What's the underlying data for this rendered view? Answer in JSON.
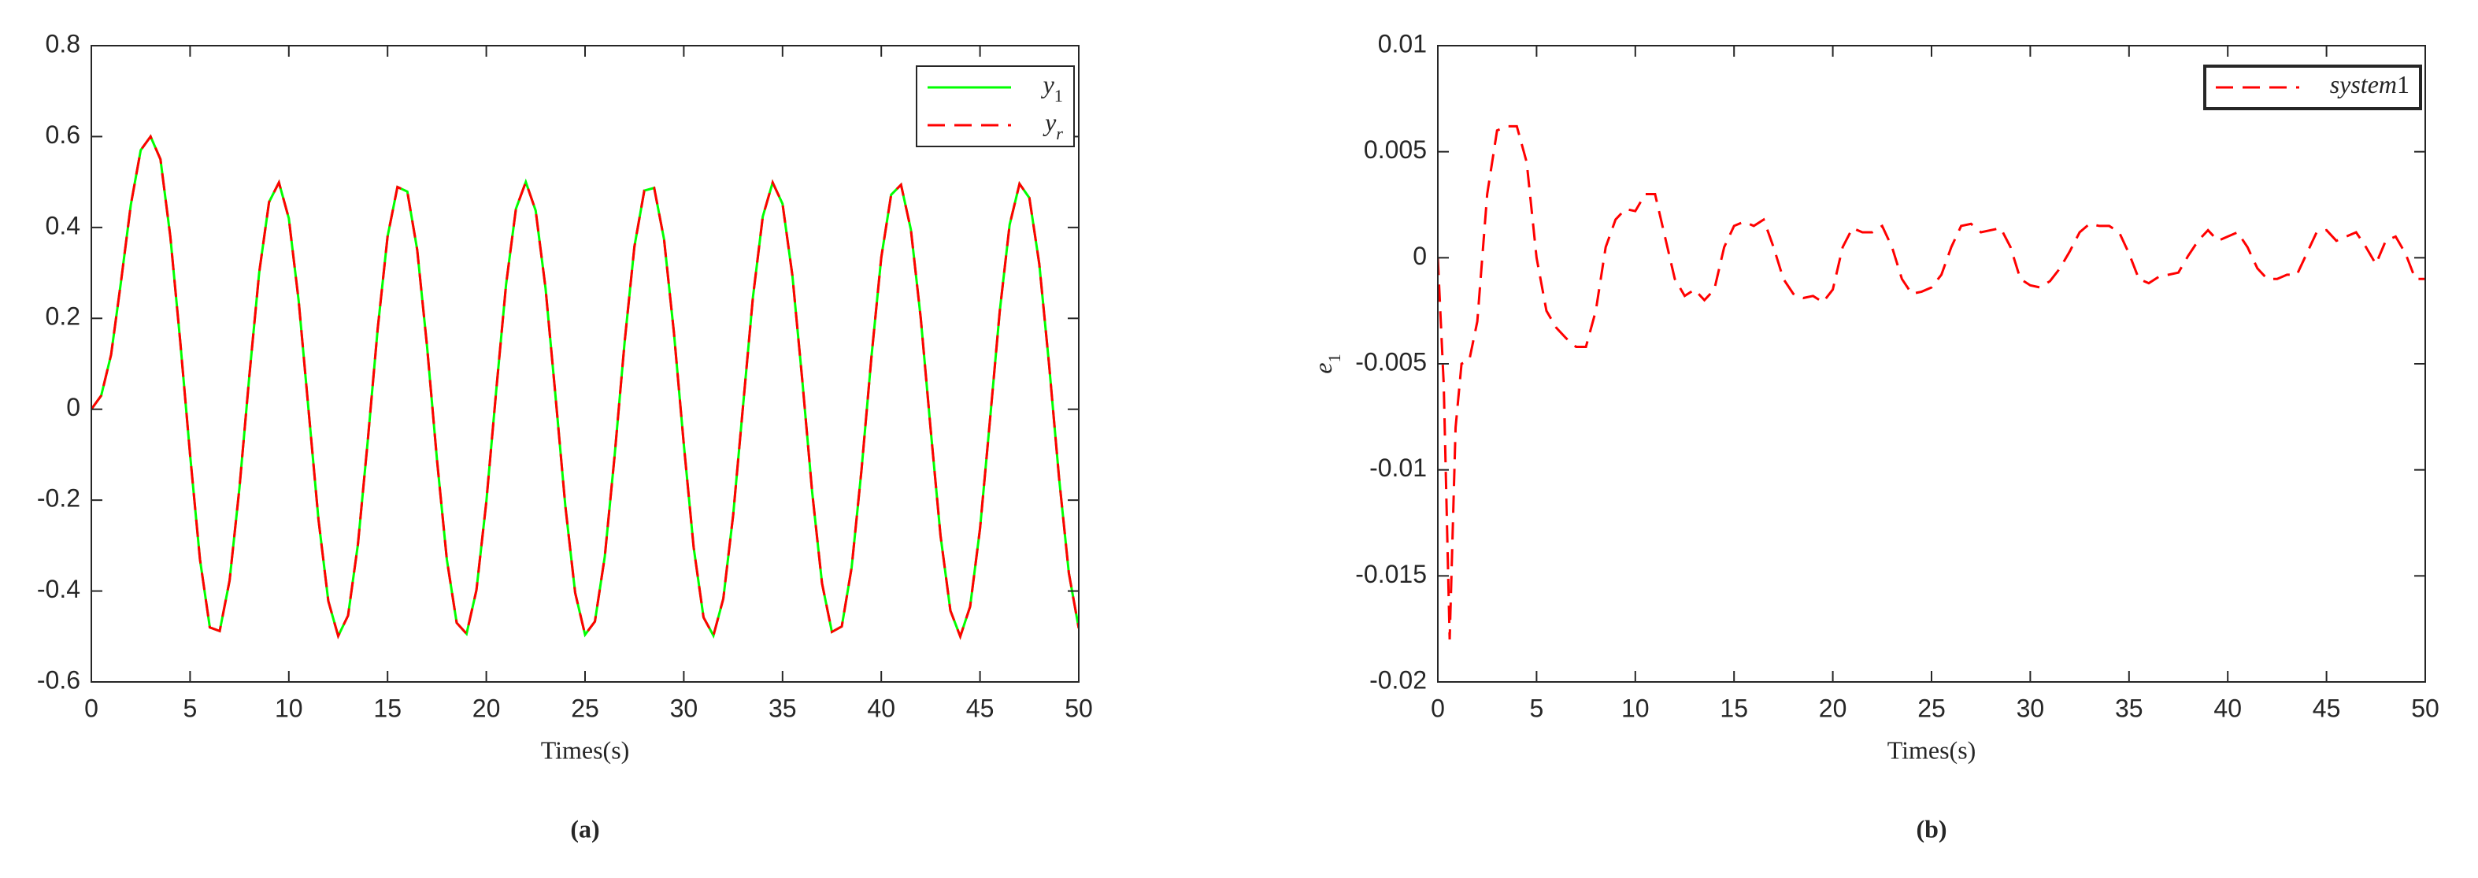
{
  "chart_data": [
    {
      "type": "line",
      "caption": "(a)",
      "xlabel": "Times(s)",
      "x": [
        0,
        0.5,
        1,
        1.5,
        2,
        2.5,
        3,
        3.5,
        4,
        4.5,
        5,
        5.5,
        6,
        6.5,
        7,
        7.5,
        8,
        8.5,
        9,
        9.5,
        10,
        10.5,
        11,
        11.5,
        12,
        12.5,
        13,
        13.5,
        14,
        14.5,
        15,
        15.5,
        16,
        16.5,
        17,
        17.5,
        18,
        18.5,
        19,
        19.5,
        20,
        20.5,
        21,
        21.5,
        22,
        22.5,
        23,
        23.5,
        24,
        24.5,
        25,
        25.5,
        26,
        26.5,
        27,
        27.5,
        28,
        28.5,
        29,
        29.5,
        30,
        30.5,
        31,
        31.5,
        32,
        32.5,
        33,
        33.5,
        34,
        34.5,
        35,
        35.5,
        36,
        36.5,
        37,
        37.5,
        38,
        38.5,
        39,
        39.5,
        40,
        40.5,
        41,
        41.5,
        42,
        42.5,
        43,
        43.5,
        44,
        44.5,
        45,
        45.5,
        46,
        46.5,
        47,
        47.5,
        48,
        48.5,
        49,
        49.5,
        50
      ],
      "series": [
        {
          "name": "y1",
          "color": "#00ff00",
          "dash": false,
          "values": [
            0,
            0.03,
            0.12,
            0.28,
            0.45,
            0.57,
            0.6,
            0.55,
            0.38,
            0.15,
            -0.1,
            -0.33,
            -0.48,
            -0.488,
            -0.377,
            -0.173,
            0.073,
            0.301,
            0.456,
            0.499,
            0.42,
            0.238,
            -0.002,
            -0.242,
            -0.422,
            -0.499,
            -0.454,
            -0.297,
            -0.068,
            0.177,
            0.38,
            0.489,
            0.479,
            0.351,
            0.138,
            -0.11,
            -0.33,
            -0.47,
            -0.494,
            -0.398,
            -0.204,
            0.04,
            0.274,
            0.441,
            0.5,
            0.437,
            0.266,
            0.031,
            -0.212,
            -0.404,
            -0.496,
            -0.467,
            -0.324,
            -0.101,
            0.146,
            0.358,
            0.481,
            0.487,
            0.374,
            0.169,
            -0.077,
            -0.304,
            -0.458,
            -0.498,
            -0.417,
            -0.233,
            0.007,
            0.246,
            0.424,
            0.499,
            0.452,
            0.294,
            0.064,
            -0.182,
            -0.383,
            -0.49,
            -0.478,
            -0.348,
            -0.133,
            0.114,
            0.334,
            0.472,
            0.494,
            0.395,
            0.2,
            -0.044,
            -0.278,
            -0.443,
            -0.5,
            -0.434,
            -0.263,
            -0.026,
            0.216,
            0.406,
            0.496,
            0.465,
            0.32,
            0.097,
            -0.15,
            -0.361,
            -0.482
          ]
        },
        {
          "name": "yr",
          "color": "#ff0000",
          "dash": true,
          "values": [
            0,
            0.03,
            0.12,
            0.28,
            0.45,
            0.57,
            0.6,
            0.55,
            0.38,
            0.15,
            -0.1,
            -0.33,
            -0.48,
            -0.488,
            -0.377,
            -0.173,
            0.073,
            0.301,
            0.456,
            0.499,
            0.42,
            0.238,
            -0.002,
            -0.242,
            -0.422,
            -0.499,
            -0.454,
            -0.297,
            -0.068,
            0.177,
            0.38,
            0.489,
            0.479,
            0.351,
            0.138,
            -0.11,
            -0.33,
            -0.47,
            -0.494,
            -0.398,
            -0.204,
            0.04,
            0.274,
            0.441,
            0.5,
            0.437,
            0.266,
            0.031,
            -0.212,
            -0.404,
            -0.496,
            -0.467,
            -0.324,
            -0.101,
            0.146,
            0.358,
            0.481,
            0.487,
            0.374,
            0.169,
            -0.077,
            -0.304,
            -0.458,
            -0.498,
            -0.417,
            -0.233,
            0.007,
            0.246,
            0.424,
            0.499,
            0.452,
            0.294,
            0.064,
            -0.182,
            -0.383,
            -0.49,
            -0.478,
            -0.348,
            -0.133,
            0.114,
            0.334,
            0.472,
            0.494,
            0.395,
            0.2,
            -0.044,
            -0.278,
            -0.443,
            -0.5,
            -0.434,
            -0.263,
            -0.026,
            0.216,
            0.406,
            0.496,
            0.465,
            0.32,
            0.097,
            -0.15,
            -0.361,
            -0.482
          ]
        }
      ],
      "xlim": [
        0,
        50
      ],
      "ylim": [
        -0.6,
        0.8
      ],
      "xticks": [
        0,
        5,
        10,
        15,
        20,
        25,
        30,
        35,
        40,
        45,
        50
      ],
      "yticks": [
        -0.6,
        -0.4,
        -0.2,
        0,
        0.2,
        0.4,
        0.6,
        0.8
      ],
      "legend": "upper right",
      "grid": false
    },
    {
      "type": "line",
      "caption": "(b)",
      "xlabel": "Times(s)",
      "ylabel": "e1",
      "x": [
        0,
        0.3,
        0.6,
        0.9,
        1.2,
        1.6,
        2,
        2.5,
        3,
        3.5,
        4,
        4.5,
        5,
        5.5,
        6,
        6.5,
        7,
        7.5,
        8,
        8.5,
        9,
        9.5,
        10,
        10.5,
        11,
        11.5,
        12,
        12.5,
        13,
        13.5,
        14,
        14.5,
        15,
        15.5,
        16,
        16.5,
        17,
        17.5,
        18,
        18.5,
        19,
        19.5,
        20,
        20.5,
        21,
        21.5,
        22,
        22.5,
        23,
        23.5,
        24,
        24.5,
        25,
        25.5,
        26,
        26.5,
        27,
        27.5,
        28,
        28.5,
        29,
        29.5,
        30,
        30.5,
        31,
        31.5,
        32,
        32.5,
        33,
        33.5,
        34,
        34.5,
        35,
        35.5,
        36,
        36.5,
        37,
        37.5,
        38,
        38.5,
        39,
        39.5,
        40,
        40.5,
        41,
        41.5,
        42,
        42.5,
        43,
        43.5,
        44,
        44.5,
        45,
        45.5,
        46,
        46.5,
        47,
        47.5,
        48,
        48.5,
        49,
        49.5,
        50
      ],
      "series": [
        {
          "name": "system1",
          "color": "#ff0000",
          "dash": true,
          "values": [
            0,
            -0.006,
            -0.018,
            -0.008,
            -0.005,
            -0.0048,
            -0.003,
            0.003,
            0.006,
            0.0062,
            0.0062,
            0.0045,
            0,
            -0.0025,
            -0.0033,
            -0.0038,
            -0.0042,
            -0.0042,
            -0.0025,
            0.0005,
            0.0018,
            0.0023,
            0.0022,
            0.003,
            0.003,
            0.001,
            -0.001,
            -0.0018,
            -0.0015,
            -0.002,
            -0.0015,
            0.0005,
            0.0015,
            0.0017,
            0.0015,
            0.0018,
            0.0005,
            -0.001,
            -0.0017,
            -0.0019,
            -0.0018,
            -0.0021,
            -0.0015,
            0.0005,
            0.0014,
            0.0012,
            0.0012,
            0.0015,
            0.0005,
            -0.001,
            -0.0017,
            -0.0016,
            -0.0014,
            -0.0008,
            0.0005,
            0.0015,
            0.0016,
            0.0012,
            0.0013,
            0.0014,
            0.0005,
            -0.001,
            -0.0013,
            -0.0014,
            -0.0011,
            -0.0005,
            0.0003,
            0.0012,
            0.0016,
            0.0015,
            0.0015,
            0.0012,
            0.0002,
            -0.001,
            -0.0012,
            -0.0009,
            -0.0008,
            -0.0007,
            0.0001,
            0.0008,
            0.0013,
            0.0008,
            0.001,
            0.0012,
            0.0005,
            -0.0005,
            -0.001,
            -0.001,
            -0.0008,
            -0.0008,
            0.0002,
            0.0012,
            0.0013,
            0.0008,
            0.001,
            0.0012,
            0.0005,
            -0.0003,
            0.0008,
            0.001,
            0.0002,
            -0.001,
            -0.001
          ]
        }
      ],
      "xlim": [
        0,
        50
      ],
      "ylim": [
        -0.02,
        0.01
      ],
      "xticks": [
        0,
        5,
        10,
        15,
        20,
        25,
        30,
        35,
        40,
        45,
        50
      ],
      "yticks": [
        -0.02,
        -0.015,
        -0.01,
        -0.005,
        0,
        0.005,
        0.01
      ],
      "legend": "upper right",
      "grid": false
    }
  ]
}
